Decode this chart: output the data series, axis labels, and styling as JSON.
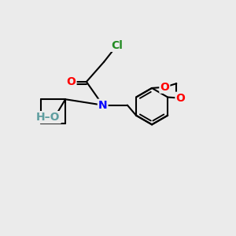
{
  "background_color": "#ebebeb",
  "bond_color": "#000000",
  "atom_colors": {
    "N": "#0000ff",
    "O": "#ff0000",
    "Cl": "#228b22",
    "HO_color": "#5f9ea0",
    "H_color": "#5f9ea0"
  },
  "bond_width": 1.5,
  "font_size_atoms": 10,
  "figsize": [
    3.0,
    3.0
  ],
  "dpi": 100
}
